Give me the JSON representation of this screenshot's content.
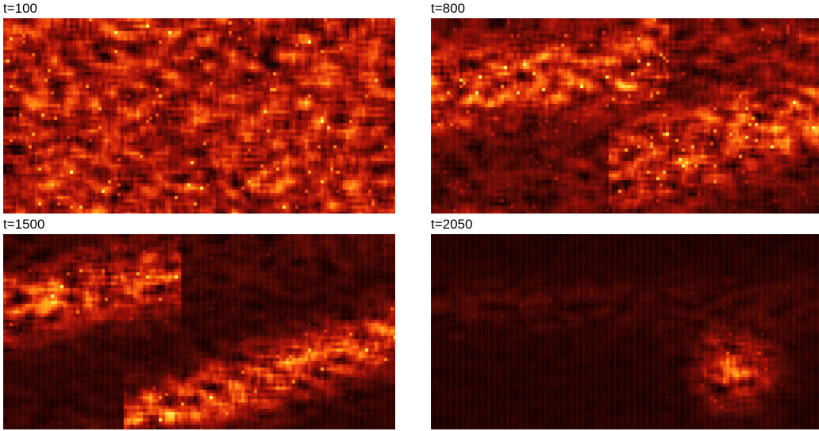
{
  "panels": [
    {
      "title": "t=100"
    },
    {
      "title": "t=800"
    },
    {
      "title": "t=1500"
    },
    {
      "title": "t=2050"
    }
  ],
  "colormap": [
    "#1a0000",
    "#5a0a05",
    "#9a0f08",
    "#d82a0c",
    "#ff6a10",
    "#ffb020",
    "#ffff60"
  ]
}
